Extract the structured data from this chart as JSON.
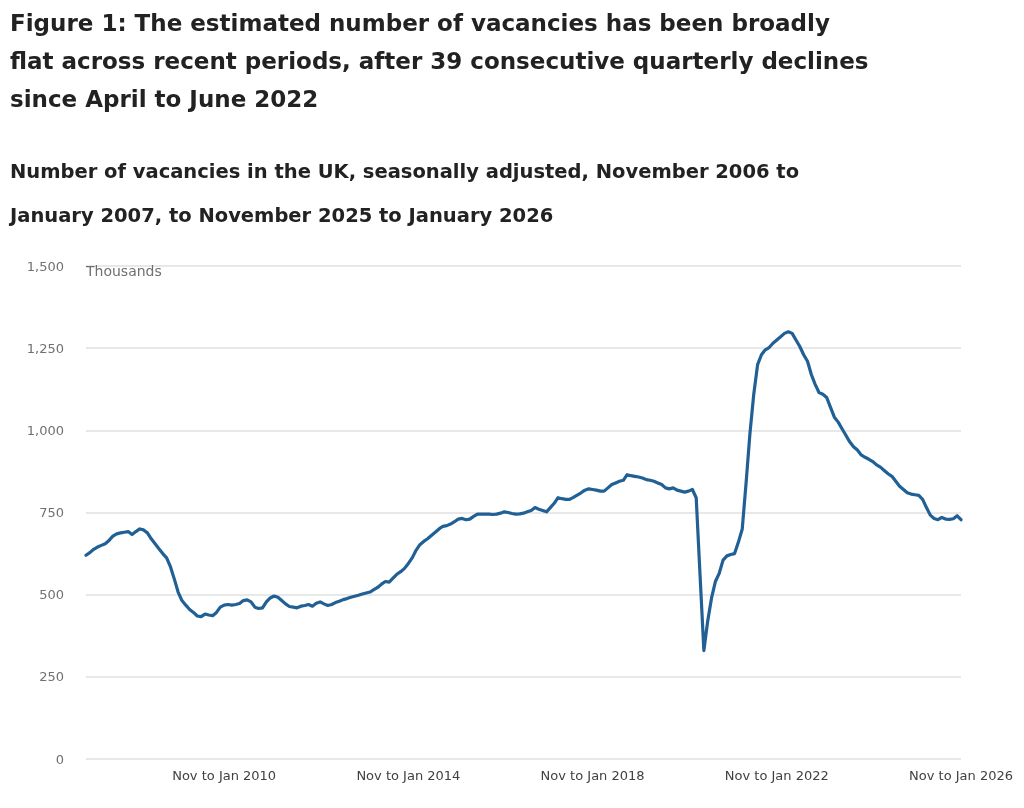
{
  "chart_data": {
    "type": "line",
    "title": "Figure 1: The estimated number of vacancies has been broadly flat across recent periods, after 39 consecutive quarterly declines since April to June 2022",
    "subtitle": "Number of vacancies in the UK, seasonally adjusted, November 2006 to January 2007, to November 2025 to January 2026",
    "ylabel": "Thousands",
    "categories": [
      null,
      null,
      null,
      null,
      null,
      null,
      null,
      null,
      null,
      null,
      null,
      null,
      null,
      null,
      null,
      null,
      null,
      null,
      null,
      null,
      null,
      null,
      null,
      null,
      null,
      null,
      null,
      null,
      null,
      null,
      null,
      null,
      null,
      null,
      null,
      null,
      "Nov to Jan 2010",
      null,
      null,
      null,
      null,
      null,
      null,
      null,
      null,
      null,
      null,
      null,
      null,
      null,
      null,
      null,
      null,
      null,
      null,
      null,
      null,
      null,
      null,
      null,
      null,
      null,
      null,
      null,
      null,
      null,
      null,
      null,
      null,
      null,
      null,
      null,
      null,
      null,
      null,
      null,
      null,
      null,
      null,
      null,
      null,
      null,
      null,
      null,
      "Nov to Jan 2014",
      null,
      null,
      null,
      null,
      null,
      null,
      null,
      null,
      null,
      null,
      null,
      null,
      null,
      null,
      null,
      null,
      null,
      null,
      null,
      null,
      null,
      null,
      null,
      null,
      null,
      null,
      null,
      null,
      null,
      null,
      null,
      null,
      null,
      null,
      null,
      null,
      null,
      null,
      null,
      null,
      null,
      null,
      null,
      null,
      null,
      null,
      null,
      "Nov to Jan 2018",
      null,
      null,
      null,
      null,
      null,
      null,
      null,
      null,
      null,
      null,
      null,
      null,
      null,
      null,
      null,
      null,
      null,
      null,
      null,
      null,
      null,
      null,
      null,
      null,
      null,
      null,
      null,
      null,
      null,
      null,
      null,
      null,
      null,
      null,
      null,
      null,
      null,
      null,
      null,
      null,
      null,
      null,
      null,
      null,
      null,
      null,
      null,
      "Nov to Jan 2022",
      null,
      null,
      null,
      null,
      null,
      null,
      null,
      null,
      null,
      null,
      null,
      null,
      null,
      null,
      null,
      null,
      null,
      null,
      null,
      null,
      null,
      null,
      null,
      null,
      null,
      null,
      null,
      null,
      null,
      null,
      null,
      null,
      null,
      null,
      null,
      null,
      null,
      null,
      null,
      null,
      null,
      null,
      null,
      null,
      null,
      null,
      null,
      "Nov to Jan 2026"
    ],
    "series": [
      {
        "color": "#206095",
        "values": [
          620,
          628,
          638,
          645,
          650,
          655,
          665,
          678,
          685,
          688,
          690,
          692,
          683,
          692,
          700,
          697,
          688,
          670,
          655,
          640,
          625,
          612,
          585,
          548,
          508,
          482,
          468,
          455,
          446,
          435,
          433,
          441,
          438,
          436,
          446,
          462,
          468,
          470,
          468,
          470,
          473,
          482,
          484,
          478,
          462,
          458,
          460,
          478,
          490,
          496,
          492,
          482,
          472,
          464,
          462,
          460,
          465,
          467,
          470,
          465,
          474,
          478,
          472,
          467,
          470,
          476,
          480,
          485,
          488,
          492,
          495,
          498,
          502,
          505,
          508,
          515,
          522,
          532,
          540,
          538,
          550,
          562,
          570,
          580,
          595,
          612,
          635,
          652,
          662,
          670,
          680,
          690,
          700,
          708,
          710,
          715,
          722,
          730,
          732,
          728,
          730,
          738,
          745,
          745,
          745,
          745,
          744,
          745,
          748,
          752,
          750,
          747,
          745,
          746,
          748,
          752,
          756,
          765,
          760,
          756,
          752,
          765,
          778,
          795,
          792,
          790,
          790,
          796,
          803,
          810,
          818,
          822,
          820,
          818,
          815,
          815,
          825,
          835,
          840,
          845,
          848,
          865,
          862,
          860,
          858,
          855,
          850,
          848,
          845,
          840,
          835,
          825,
          822,
          825,
          818,
          815,
          812,
          815,
          820,
          795,
          560,
          330,
          420,
          490,
          540,
          565,
          605,
          618,
          622,
          625,
          660,
          700,
          840,
          990,
          1110,
          1200,
          1230,
          1245,
          1252,
          1265,
          1275,
          1285,
          1295,
          1300,
          1295,
          1275,
          1255,
          1230,
          1210,
          1170,
          1140,
          1115,
          1110,
          1100,
          1070,
          1040,
          1025,
          1005,
          985,
          965,
          950,
          940,
          925,
          918,
          912,
          905,
          895,
          888,
          878,
          868,
          860,
          845,
          830,
          820,
          810,
          806,
          804,
          802,
          790,
          765,
          742,
          732,
          728,
          735,
          730,
          729,
          731,
          740,
          728
        ]
      }
    ],
    "ylim": [
      0,
      1500
    ],
    "yticks": [
      0,
      250,
      500,
      750,
      {
        "value": 1000,
        "label": "1,000"
      },
      {
        "value": 1250,
        "label": "1,250"
      },
      {
        "value": 1500,
        "label": "1,500"
      }
    ],
    "grid": "y",
    "marker": "none",
    "line_style": "solid"
  }
}
